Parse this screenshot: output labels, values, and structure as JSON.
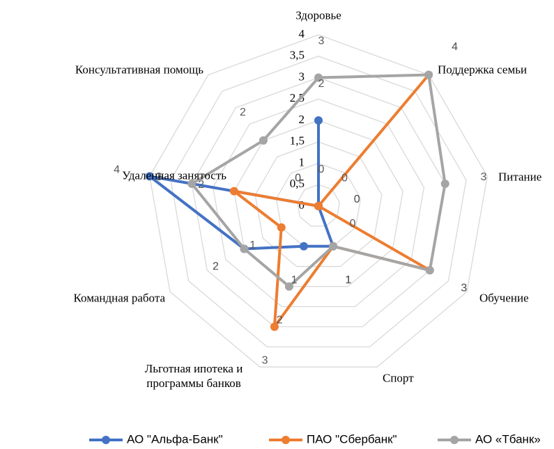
{
  "chart_data": {
    "type": "radar",
    "categories": [
      "Здоровье",
      "Поддержка семьи",
      "Питание",
      "Обучение",
      "Спорт",
      "Льготная ипотека и программы банков",
      "Командная работа",
      "Удаленная занятость",
      "Консультативная помощь"
    ],
    "series": [
      {
        "name": "АО \"Альфа-Банк\"",
        "color": "#4472c4",
        "values": [
          2,
          0,
          0,
          0,
          1,
          1,
          2,
          4,
          0
        ]
      },
      {
        "name": "ПАО \"Сбербанк\"",
        "color": "#ed7d31",
        "values": [
          0,
          4,
          0,
          3,
          1,
          3,
          1,
          2,
          0
        ]
      },
      {
        "name": "АО «Тбанк»",
        "color": "#a5a5a5",
        "values": [
          3,
          4,
          3,
          3,
          1,
          2,
          2,
          3,
          2
        ]
      }
    ],
    "ylim": [
      0,
      4
    ],
    "yticks": [
      0,
      {
        "value": 0.5,
        "label": "0,5"
      },
      1,
      {
        "value": 1.5,
        "label": "1,5"
      },
      2,
      {
        "value": 2.5,
        "label": "2,5"
      },
      3,
      {
        "value": 3.5,
        "label": "3,5"
      },
      4
    ],
    "grid": true,
    "legend": "bottom"
  }
}
